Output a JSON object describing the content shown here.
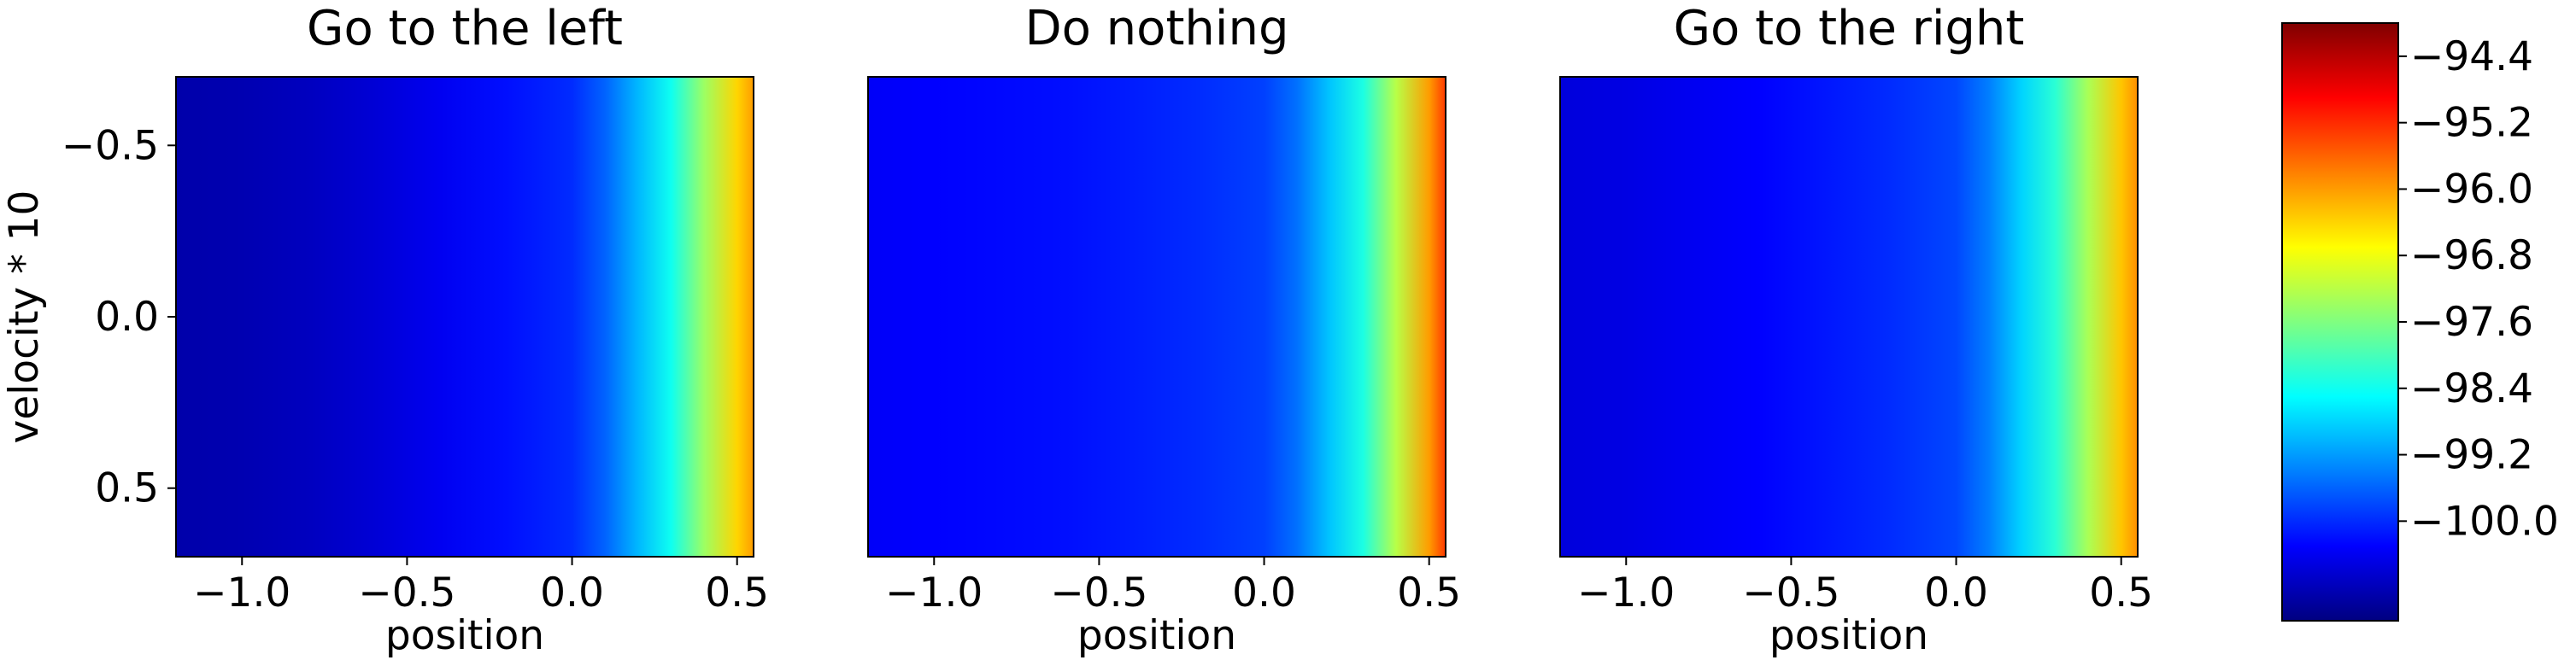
{
  "chart_data": [
    {
      "type": "heatmap",
      "title": "Go to the left",
      "xlabel": "position",
      "ylabel": "velocity * 10",
      "xlim": [
        -1.2,
        0.55
      ],
      "ylim": [
        -0.7,
        0.7
      ],
      "y_inverted": true,
      "x_ticks": [
        -1.0,
        -0.5,
        0.0,
        0.5
      ],
      "x_tick_labels": [
        "−1.0",
        "−0.5",
        "0.0",
        "0.5"
      ],
      "y_ticks": [
        -0.5,
        0.0,
        0.5
      ],
      "y_tick_labels": [
        "−0.5",
        "0.0",
        "0.5"
      ],
      "value_varies_along": "position",
      "x": [
        -1.2,
        -1.0,
        -0.8,
        -0.6,
        -0.4,
        -0.2,
        0.0,
        0.1,
        0.2,
        0.3,
        0.4,
        0.5,
        0.55
      ],
      "values": [
        -100.9,
        -100.85,
        -100.75,
        -100.6,
        -100.4,
        -100.2,
        -100.0,
        -99.6,
        -99.0,
        -98.4,
        -97.4,
        -96.4,
        -96.0
      ]
    },
    {
      "type": "heatmap",
      "title": "Do nothing",
      "xlabel": "position",
      "ylabel": "",
      "xlim": [
        -1.2,
        0.55
      ],
      "ylim": [
        -0.7,
        0.7
      ],
      "y_inverted": true,
      "x_ticks": [
        -1.0,
        -0.5,
        0.0,
        0.5
      ],
      "x_tick_labels": [
        "−1.0",
        "−0.5",
        "0.0",
        "0.5"
      ],
      "y_ticks": [],
      "y_tick_labels": [],
      "value_varies_along": "position",
      "x": [
        -1.2,
        -1.0,
        -0.8,
        -0.6,
        -0.4,
        -0.2,
        0.0,
        0.1,
        0.2,
        0.3,
        0.4,
        0.5,
        0.55
      ],
      "values": [
        -100.35,
        -100.3,
        -100.25,
        -100.2,
        -100.1,
        -100.0,
        -99.85,
        -99.5,
        -98.9,
        -98.3,
        -97.2,
        -96.0,
        -95.3
      ]
    },
    {
      "type": "heatmap",
      "title": "Go to the right",
      "xlabel": "position",
      "ylabel": "",
      "xlim": [
        -1.2,
        0.55
      ],
      "ylim": [
        -0.7,
        0.7
      ],
      "y_inverted": true,
      "x_ticks": [
        -1.0,
        -0.5,
        0.0,
        0.5
      ],
      "x_tick_labels": [
        "−1.0",
        "−0.5",
        "0.0",
        "0.5"
      ],
      "y_ticks": [],
      "y_tick_labels": [],
      "value_varies_along": "position",
      "x": [
        -1.2,
        -1.0,
        -0.8,
        -0.6,
        -0.4,
        -0.2,
        0.0,
        0.1,
        0.2,
        0.3,
        0.4,
        0.5,
        0.55
      ],
      "values": [
        -100.55,
        -100.5,
        -100.4,
        -100.3,
        -100.15,
        -100.0,
        -99.8,
        -99.4,
        -98.8,
        -98.2,
        -97.3,
        -96.3,
        -95.9
      ]
    }
  ],
  "colorbar": {
    "colormap": "jet",
    "range": [
      -101.2,
      -94.0
    ],
    "ticks": [
      -100.0,
      -99.2,
      -98.4,
      -97.6,
      -96.8,
      -96.0,
      -95.2,
      -94.4
    ],
    "tick_labels": [
      "−100.0",
      "−99.2",
      "−98.4",
      "−97.6",
      "−96.8",
      "−96.0",
      "−95.2",
      "−94.4"
    ]
  }
}
